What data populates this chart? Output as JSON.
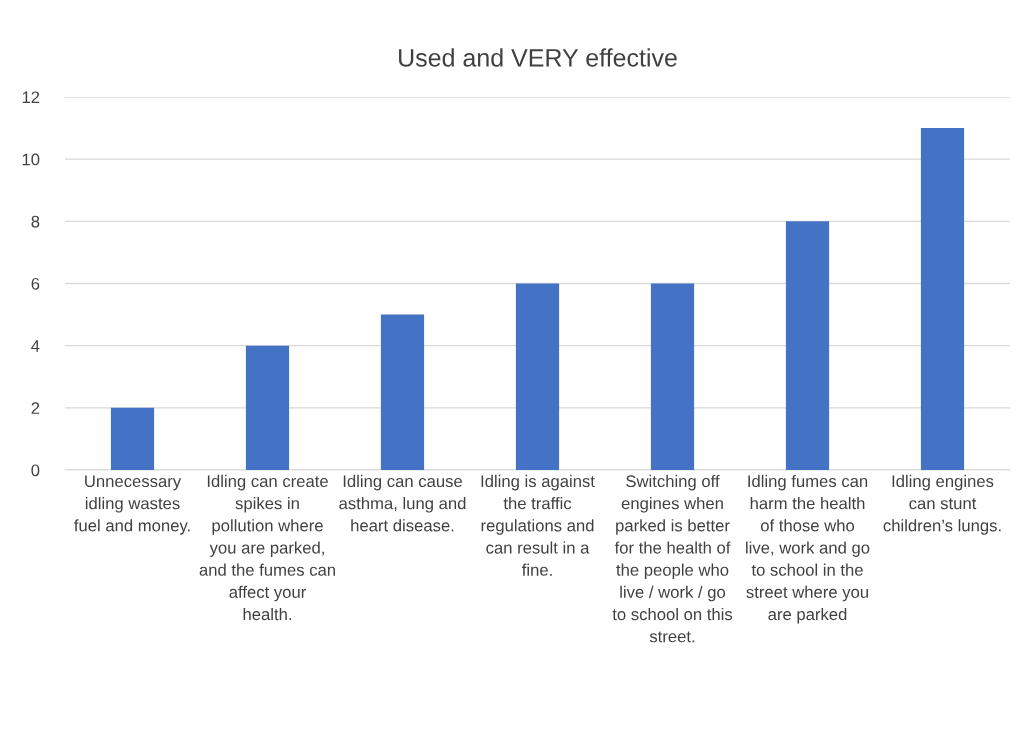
{
  "chart_data": {
    "type": "bar",
    "title": "Used and VERY effective",
    "categories": [
      "Unnecessary idling wastes fuel and money.",
      "Idling can create spikes in pollution where you are parked, and the fumes can affect your health.",
      "Idling can cause asthma, lung and heart disease.",
      "Idling is against the traffic regulations and can result in a fine.",
      "Switching off engines when parked is better for the health of the people who live / work / go to school on this street.",
      "Idling fumes can harm the health of those who live, work and go to school in the street where you are parked",
      "Idling engines can stunt children’s lungs."
    ],
    "values": [
      2,
      4,
      5,
      6,
      6,
      8,
      11
    ],
    "color": "#4472c4",
    "ylim": [
      0,
      12
    ],
    "yticks": [
      0,
      2,
      4,
      6,
      8,
      10,
      12
    ],
    "grid": "y",
    "legend": false
  }
}
